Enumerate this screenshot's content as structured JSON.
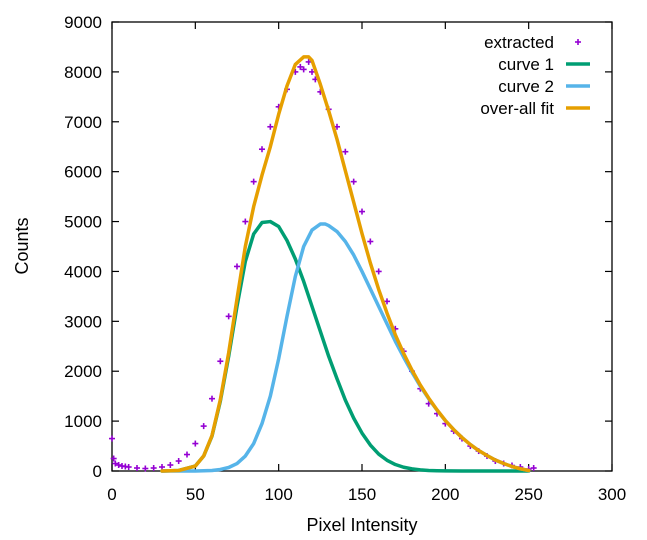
{
  "chart_data": {
    "type": "line",
    "xlabel": "Pixel Intensity",
    "ylabel": "Counts",
    "xlim": [
      0,
      300
    ],
    "ylim": [
      0,
      9000
    ],
    "x_ticks": [
      "0",
      "50",
      "100",
      "150",
      "200",
      "250",
      "300"
    ],
    "y_ticks": [
      "0",
      "1000",
      "2000",
      "3000",
      "4000",
      "5000",
      "6000",
      "7000",
      "8000",
      "9000"
    ],
    "grid": false,
    "legend_position": "top-right",
    "series": [
      {
        "name": "extracted",
        "style": "points",
        "color": "#9400d3",
        "x": [
          0,
          1,
          2,
          4,
          6,
          8,
          10,
          15,
          20,
          25,
          30,
          35,
          40,
          45,
          50,
          55,
          60,
          65,
          70,
          75,
          80,
          85,
          90,
          95,
          100,
          105,
          110,
          113,
          115,
          118,
          120,
          122,
          125,
          130,
          135,
          140,
          145,
          150,
          155,
          160,
          165,
          170,
          175,
          180,
          185,
          190,
          195,
          200,
          205,
          210,
          215,
          220,
          225,
          230,
          235,
          240,
          245,
          250,
          253
        ],
        "y": [
          650,
          250,
          150,
          120,
          100,
          90,
          80,
          60,
          50,
          60,
          80,
          120,
          200,
          330,
          550,
          900,
          1450,
          2200,
          3100,
          4100,
          5000,
          5800,
          6450,
          6900,
          7300,
          7650,
          8000,
          8100,
          8050,
          8200,
          8000,
          7850,
          7600,
          7250,
          6900,
          6400,
          5800,
          5200,
          4600,
          4000,
          3400,
          2850,
          2400,
          2000,
          1650,
          1350,
          1150,
          950,
          800,
          650,
          500,
          400,
          300,
          200,
          150,
          110,
          80,
          40,
          60
        ]
      },
      {
        "name": "curve 1",
        "style": "line",
        "color": "#009e73",
        "x": [
          30,
          40,
          50,
          55,
          60,
          65,
          70,
          75,
          80,
          85,
          90,
          95,
          100,
          105,
          110,
          115,
          120,
          125,
          130,
          135,
          140,
          145,
          150,
          155,
          160,
          165,
          170,
          175,
          180,
          185,
          190,
          195,
          200,
          210,
          220,
          230,
          240,
          250
        ],
        "y": [
          0,
          10,
          100,
          300,
          700,
          1400,
          2300,
          3300,
          4200,
          4750,
          4980,
          5000,
          4900,
          4620,
          4250,
          3800,
          3300,
          2800,
          2300,
          1850,
          1420,
          1060,
          760,
          520,
          340,
          215,
          130,
          75,
          42,
          22,
          11,
          5,
          2,
          0,
          0,
          0,
          0,
          0
        ]
      },
      {
        "name": "curve 2",
        "style": "line",
        "color": "#56b4e9",
        "x": [
          30,
          50,
          60,
          65,
          70,
          75,
          80,
          85,
          90,
          95,
          100,
          105,
          110,
          115,
          120,
          125,
          128,
          130,
          135,
          140,
          145,
          150,
          155,
          160,
          165,
          170,
          175,
          180,
          185,
          190,
          195,
          200,
          205,
          210,
          215,
          220,
          225,
          230,
          235,
          240,
          245,
          250
        ],
        "y": [
          0,
          0,
          10,
          30,
          70,
          150,
          300,
          550,
          950,
          1500,
          2250,
          3100,
          3900,
          4500,
          4830,
          4950,
          4950,
          4920,
          4800,
          4600,
          4330,
          4000,
          3650,
          3300,
          2950,
          2600,
          2280,
          1980,
          1700,
          1450,
          1220,
          1010,
          830,
          670,
          530,
          410,
          310,
          220,
          150,
          90,
          45,
          10
        ]
      },
      {
        "name": "over-all fit",
        "style": "line",
        "color": "#e69f00",
        "x": [
          30,
          40,
          50,
          55,
          60,
          65,
          70,
          75,
          80,
          85,
          90,
          95,
          100,
          105,
          110,
          115,
          118,
          120,
          125,
          130,
          135,
          140,
          145,
          150,
          155,
          160,
          165,
          170,
          175,
          180,
          185,
          190,
          195,
          200,
          205,
          210,
          215,
          220,
          225,
          230,
          235,
          240,
          245,
          250
        ],
        "y": [
          0,
          10,
          100,
          300,
          710,
          1430,
          2370,
          3450,
          4500,
          5300,
          5930,
          6500,
          7150,
          7720,
          8150,
          8300,
          8300,
          8230,
          7750,
          7220,
          6650,
          6020,
          5390,
          4760,
          4170,
          3640,
          3165,
          2730,
          2355,
          2022,
          1722,
          1461,
          1225,
          1012,
          830,
          670,
          530,
          410,
          310,
          220,
          150,
          90,
          45,
          10
        ]
      }
    ]
  }
}
